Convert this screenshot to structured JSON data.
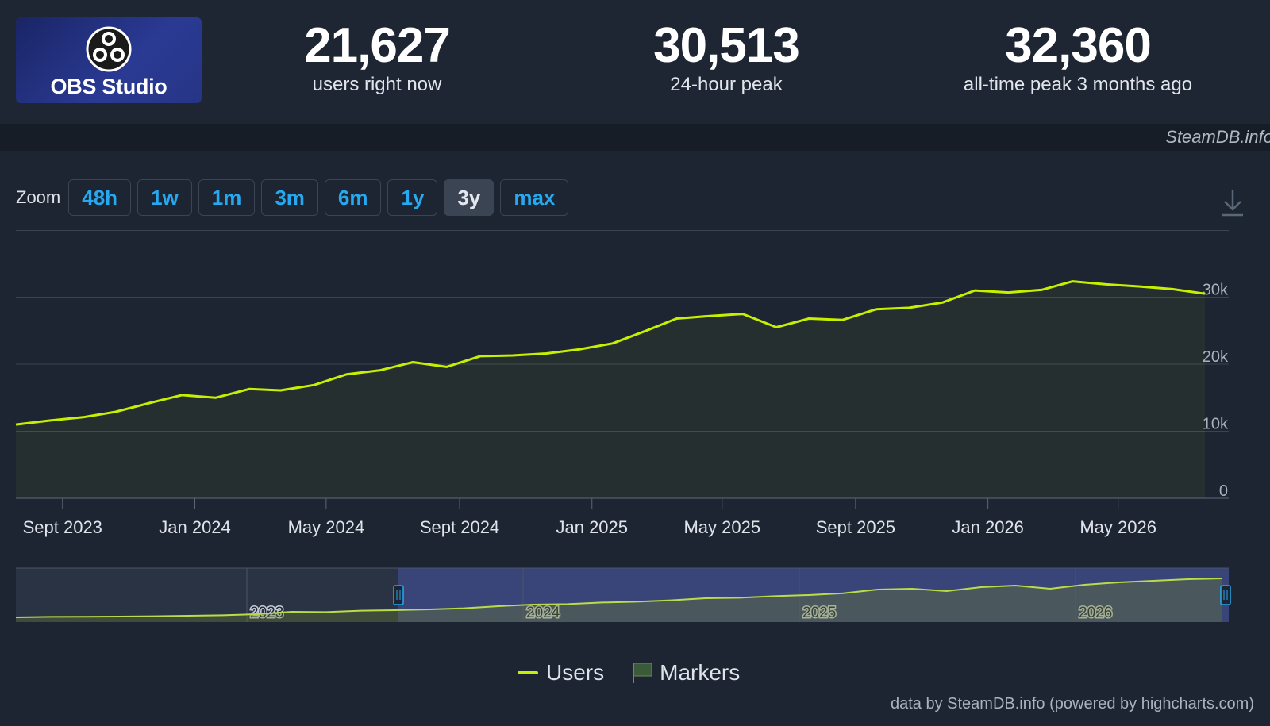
{
  "app": {
    "name": "OBS Studio",
    "source_badge": "SteamDB.info",
    "credit": "data by SteamDB.info (powered by highcharts.com)"
  },
  "stats": [
    {
      "value": "21,627",
      "label": "users right now"
    },
    {
      "value": "30,513",
      "label": "24-hour peak"
    },
    {
      "value": "32,360",
      "label": "all-time peak 3 months ago"
    }
  ],
  "zoom": {
    "label": "Zoom",
    "options": [
      "48h",
      "1w",
      "1m",
      "3m",
      "6m",
      "1y",
      "3y",
      "max"
    ],
    "selected": "3y"
  },
  "icons": {
    "logo": "obs-logo-icon",
    "download": "download-icon",
    "markers": "flag-icon"
  },
  "colors": {
    "series": "#c7f000",
    "accent": "#26a9f0",
    "background": "#1d2532"
  },
  "legend": {
    "users": "Users",
    "markers": "Markers"
  },
  "chart_data": {
    "type": "area",
    "title": "",
    "xlabel": "",
    "ylabel": "",
    "x_ticks": [
      "Sept 2023",
      "Jan 2024",
      "May 2024",
      "Sept 2024",
      "Jan 2025",
      "May 2025",
      "Sept 2025",
      "Jan 2026",
      "May 2026"
    ],
    "y_ticks": [
      "0",
      "10k",
      "20k",
      "30k"
    ],
    "ylim": [
      0,
      40000
    ],
    "xlim": [
      "2023-07-20",
      "2026-07-20"
    ],
    "grid": true,
    "legend_position": "bottom-center",
    "series": [
      {
        "name": "Users",
        "x": [
          "2023-07-20",
          "2023-08-20",
          "2023-09-20",
          "2023-10-20",
          "2023-11-20",
          "2023-12-20",
          "2024-01-20",
          "2024-02-20",
          "2024-03-20",
          "2024-04-20",
          "2024-05-20",
          "2024-06-20",
          "2024-07-20",
          "2024-08-20",
          "2024-09-20",
          "2024-10-20",
          "2024-11-20",
          "2024-12-20",
          "2025-01-20",
          "2025-02-20",
          "2025-03-20",
          "2025-04-20",
          "2025-05-20",
          "2025-06-20",
          "2025-07-20",
          "2025-08-20",
          "2025-09-20",
          "2025-10-20",
          "2025-11-20",
          "2025-12-20",
          "2026-01-20",
          "2026-02-20",
          "2026-03-20",
          "2026-04-20",
          "2026-05-20",
          "2026-06-20",
          "2026-07-20"
        ],
        "values": [
          11000,
          11600,
          12100,
          12900,
          14200,
          15400,
          15000,
          16300,
          16100,
          16900,
          18500,
          19100,
          20300,
          19600,
          21200,
          21300,
          21600,
          22200,
          23100,
          25000,
          26800,
          27200,
          27500,
          25500,
          26800,
          26600,
          28200,
          28400,
          29200,
          31000,
          30700,
          31100,
          32360,
          31900,
          31600,
          31200,
          30513
        ]
      }
    ],
    "navigator": {
      "x_labels": [
        "2023",
        "2024",
        "2025",
        "2026"
      ],
      "selected_range": [
        "2023-07-20",
        "2026-07-20"
      ]
    }
  }
}
